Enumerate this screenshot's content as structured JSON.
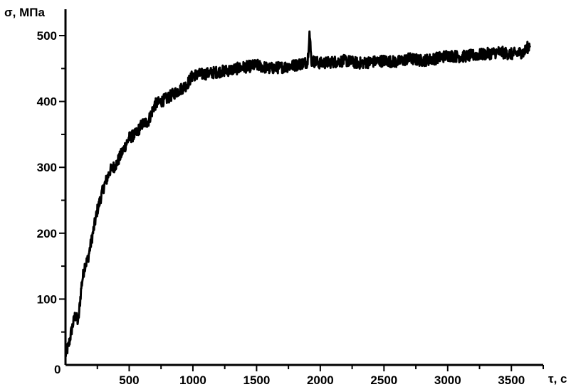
{
  "chart_data": {
    "type": "line",
    "title": "",
    "xlabel": "τ, с",
    "ylabel": "σ, МПа",
    "xlim": [
      0,
      3750
    ],
    "ylim": [
      0,
      540
    ],
    "x_ticks": [
      500,
      1000,
      1500,
      2000,
      2500,
      3000,
      3500
    ],
    "y_ticks": [
      100,
      200,
      300,
      400,
      500
    ],
    "origin_label": "0",
    "grid": false,
    "legend": "none",
    "series": [
      {
        "color": "#000000",
        "x": [
          0,
          25,
          50,
          75,
          100,
          125,
          150,
          175,
          200,
          250,
          300,
          350,
          400,
          450,
          500,
          550,
          600,
          650,
          700,
          750,
          800,
          850,
          900,
          950,
          1000,
          1100,
          1200,
          1300,
          1400,
          1500,
          1600,
          1700,
          1800,
          1900,
          1915,
          1930,
          2000,
          2100,
          2200,
          2300,
          2400,
          2500,
          2600,
          2700,
          2800,
          2900,
          3000,
          3100,
          3200,
          3300,
          3400,
          3500,
          3600,
          3650
        ],
        "y": [
          15,
          30,
          55,
          75,
          65,
          120,
          150,
          160,
          185,
          235,
          270,
          295,
          305,
          325,
          345,
          350,
          365,
          370,
          395,
          400,
          405,
          412,
          418,
          425,
          440,
          442,
          445,
          448,
          452,
          455,
          450,
          452,
          455,
          460,
          505,
          462,
          458,
          460,
          462,
          458,
          460,
          462,
          460,
          465,
          462,
          465,
          470,
          468,
          470,
          472,
          475,
          472,
          475,
          488
        ]
      }
    ]
  }
}
